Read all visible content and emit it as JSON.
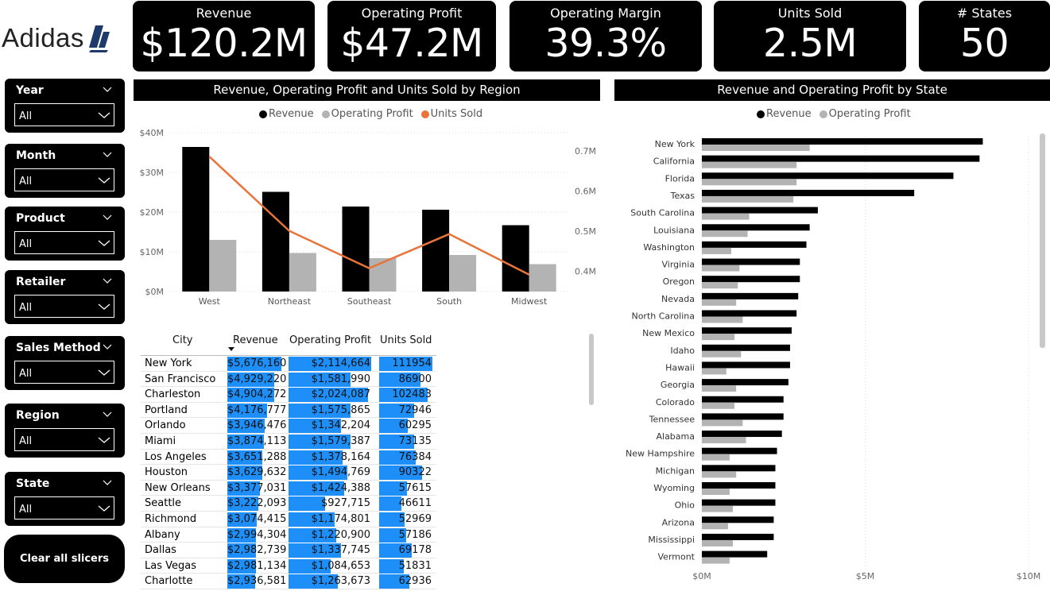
{
  "logo": {
    "text": "Adidas"
  },
  "kpis": [
    {
      "label": "Revenue",
      "value": "$120.2M"
    },
    {
      "label": "Operating Profit",
      "value": "$47.2M"
    },
    {
      "label": "Operating Margin",
      "value": "39.3%"
    },
    {
      "label": "Units Sold",
      "value": "2.5M"
    },
    {
      "label": "# States",
      "value": "50"
    }
  ],
  "slicers": [
    {
      "label": "Year",
      "value": "All"
    },
    {
      "label": "Month",
      "value": "All"
    },
    {
      "label": "Product",
      "value": "All"
    },
    {
      "label": "Retailer",
      "value": "All"
    },
    {
      "label": "Sales Method",
      "value": "All"
    },
    {
      "label": "Region",
      "value": "All"
    },
    {
      "label": "State",
      "value": "All"
    }
  ],
  "clear_button": "Clear all slicers",
  "colors": {
    "revenue": "#000000",
    "operating_profit": "#b3b3b3",
    "units_sold": "#e8743b",
    "table_bar": "#1e8ff8"
  },
  "chart_data": [
    {
      "type": "bar",
      "title": "Revenue, Operating Profit and Units Sold by Region",
      "categories": [
        "West",
        "Northeast",
        "Southeast",
        "South",
        "Midwest"
      ],
      "series": [
        {
          "name": "Revenue",
          "values": [
            36.4,
            25.1,
            21.4,
            20.6,
            16.7
          ]
        },
        {
          "name": "Operating Profit",
          "values": [
            13.0,
            9.7,
            8.4,
            9.2,
            6.9
          ]
        },
        {
          "name": "Units Sold",
          "values": [
            0.686,
            0.501,
            0.408,
            0.493,
            0.392
          ],
          "line": true
        }
      ],
      "y_ticks": [
        "$0M",
        "$10M",
        "$20M",
        "$30M",
        "$40M"
      ],
      "y2_ticks": [
        "0.4M",
        "0.5M",
        "0.6M",
        "0.7M"
      ],
      "ylim": [
        0,
        40
      ],
      "y2lim": [
        0.35,
        0.7
      ],
      "legend": "top-center",
      "grid": true
    },
    {
      "type": "bar",
      "orientation": "horizontal",
      "title": "Revenue and Operating Profit by State",
      "categories": [
        "New York",
        "California",
        "Florida",
        "Texas",
        "South Carolina",
        "Louisiana",
        "Washington",
        "Virginia",
        "Oregon",
        "Nevada",
        "North Carolina",
        "New Mexico",
        "Idaho",
        "Hawaii",
        "Georgia",
        "Colorado",
        "Tennessee",
        "Alabama",
        "New Hampshire",
        "Michigan",
        "Wyoming",
        "Ohio",
        "Arizona",
        "Mississippi",
        "Vermont"
      ],
      "series": [
        {
          "name": "Revenue",
          "values": [
            8.6,
            8.5,
            7.7,
            6.5,
            3.55,
            3.3,
            3.2,
            3.0,
            3.0,
            2.95,
            2.9,
            2.75,
            2.7,
            2.7,
            2.65,
            2.5,
            2.5,
            2.45,
            2.3,
            2.25,
            2.25,
            2.25,
            2.2,
            2.2,
            2.0
          ]
        },
        {
          "name": "Operating Profit",
          "values": [
            3.3,
            2.9,
            2.9,
            2.8,
            1.45,
            1.4,
            0.9,
            1.15,
            1.1,
            1.05,
            1.25,
            1.0,
            1.2,
            0.75,
            1.05,
            1.0,
            1.25,
            1.35,
            0.85,
            1.05,
            0.85,
            0.95,
            0.8,
            0.95,
            0.85
          ]
        }
      ],
      "x_ticks": [
        "$0M",
        "$5M",
        "$10M"
      ],
      "xlim": [
        0,
        10
      ],
      "legend": "top-center",
      "grid": true
    }
  ],
  "table": {
    "headers": [
      "City",
      "Revenue",
      "Operating Profit",
      "Units Sold"
    ],
    "rows": [
      {
        "city": "New York",
        "revenue": "$5,676,160",
        "profit": "$2,114,664",
        "units": "111954",
        "r": 5676160,
        "p": 2114664,
        "u": 111954
      },
      {
        "city": "San Francisco",
        "revenue": "$4,929,220",
        "profit": "$1,581,990",
        "units": "86900",
        "r": 4929220,
        "p": 1581990,
        "u": 86900
      },
      {
        "city": "Charleston",
        "revenue": "$4,904,272",
        "profit": "$2,024,087",
        "units": "102483",
        "r": 4904272,
        "p": 2024087,
        "u": 102483
      },
      {
        "city": "Portland",
        "revenue": "$4,176,777",
        "profit": "$1,575,865",
        "units": "72946",
        "r": 4176777,
        "p": 1575865,
        "u": 72946
      },
      {
        "city": "Orlando",
        "revenue": "$3,946,476",
        "profit": "$1,342,204",
        "units": "60295",
        "r": 3946476,
        "p": 1342204,
        "u": 60295
      },
      {
        "city": "Miami",
        "revenue": "$3,874,113",
        "profit": "$1,579,387",
        "units": "73135",
        "r": 3874113,
        "p": 1579387,
        "u": 73135
      },
      {
        "city": "Los Angeles",
        "revenue": "$3,651,288",
        "profit": "$1,378,164",
        "units": "76384",
        "r": 3651288,
        "p": 1378164,
        "u": 76384
      },
      {
        "city": "Houston",
        "revenue": "$3,629,632",
        "profit": "$1,494,769",
        "units": "90322",
        "r": 3629632,
        "p": 1494769,
        "u": 90322
      },
      {
        "city": "New Orleans",
        "revenue": "$3,377,031",
        "profit": "$1,424,388",
        "units": "57615",
        "r": 3377031,
        "p": 1424388,
        "u": 57615
      },
      {
        "city": "Seattle",
        "revenue": "$3,222,093",
        "profit": "$927,715",
        "units": "46611",
        "r": 3222093,
        "p": 927715,
        "u": 46611
      },
      {
        "city": "Richmond",
        "revenue": "$3,074,415",
        "profit": "$1,174,801",
        "units": "52969",
        "r": 3074415,
        "p": 1174801,
        "u": 52969
      },
      {
        "city": "Albany",
        "revenue": "$2,994,304",
        "profit": "$1,220,900",
        "units": "57186",
        "r": 2994304,
        "p": 1220900,
        "u": 57186
      },
      {
        "city": "Dallas",
        "revenue": "$2,982,739",
        "profit": "$1,337,745",
        "units": "69178",
        "r": 2982739,
        "p": 1337745,
        "u": 69178
      },
      {
        "city": "Las Vegas",
        "revenue": "$2,981,134",
        "profit": "$1,084,653",
        "units": "51831",
        "r": 2981134,
        "p": 1084653,
        "u": 51831
      },
      {
        "city": "Charlotte",
        "revenue": "$2,936,581",
        "profit": "$1,263,673",
        "units": "62936",
        "r": 2936581,
        "p": 1263673,
        "u": 62936
      }
    ]
  }
}
